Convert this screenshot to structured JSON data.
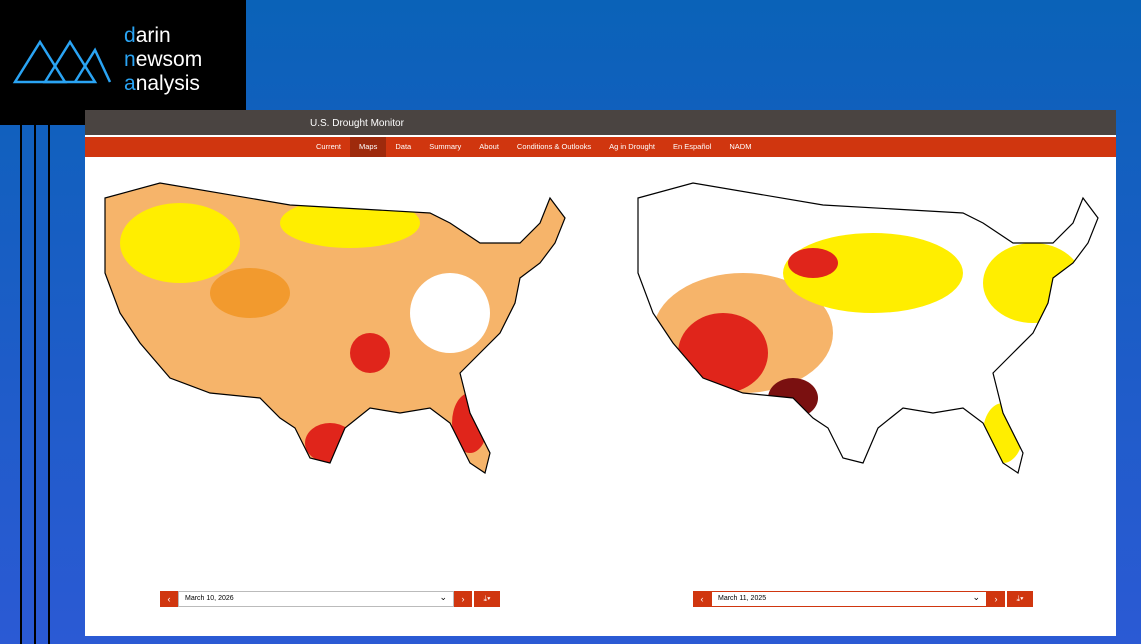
{
  "logo": {
    "lines": [
      "darin",
      "newsom",
      "analysis"
    ]
  },
  "header": {
    "title": "U.S. Drought Monitor"
  },
  "nav": {
    "items": [
      "Current",
      "Maps",
      "Data",
      "Summary",
      "About",
      "Conditions & Outlooks",
      "Ag in Drought",
      "En Español",
      "NADM"
    ],
    "active": 1
  },
  "maps": [
    {
      "date": "March 10, 2026"
    },
    {
      "date": "March 11, 2025"
    }
  ]
}
